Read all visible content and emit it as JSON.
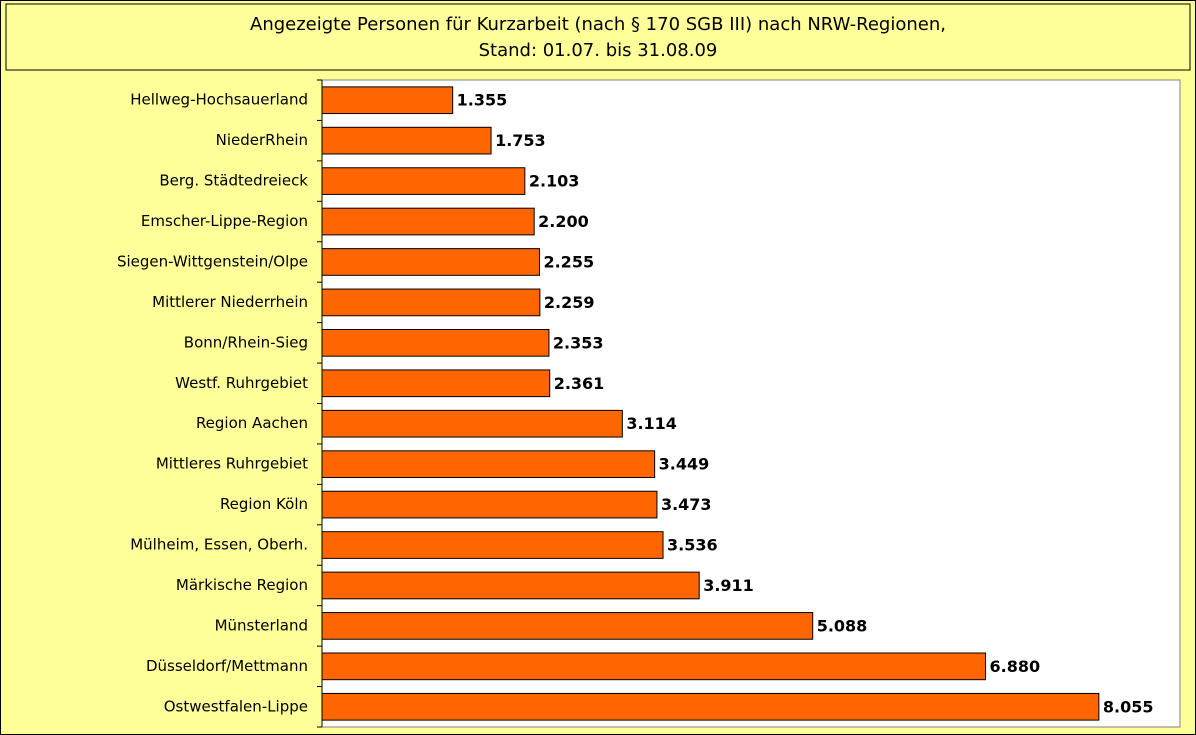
{
  "chart_data": {
    "type": "bar",
    "orientation": "horizontal",
    "title": [
      "Angezeigte Personen für Kurzarbeit (nach § 170 SGB III) nach NRW-Regionen,",
      "Stand: 01.07. bis 31.08.09"
    ],
    "categories": [
      "Hellweg-Hochsauerland",
      "NiederRhein",
      "Berg. Städtedreieck",
      "Emscher-Lippe-Region",
      "Siegen-Wittgenstein/Olpe",
      "Mittlerer Niederrhein",
      "Bonn/Rhein-Sieg",
      "Westf. Ruhrgebiet",
      "Region Aachen",
      "Mittleres Ruhrgebiet",
      "Region Köln",
      "Mülheim, Essen, Oberh.",
      "Märkische Region",
      "Münsterland",
      "Düsseldorf/Mettmann",
      "Ostwestfalen-Lippe"
    ],
    "values": [
      1355,
      1753,
      2103,
      2200,
      2255,
      2259,
      2353,
      2361,
      3114,
      3449,
      3473,
      3536,
      3911,
      5088,
      6880,
      8055
    ],
    "value_labels": [
      "1.355",
      "1.753",
      "2.103",
      "2.200",
      "2.255",
      "2.259",
      "2.353",
      "2.361",
      "3.114",
      "3.449",
      "3.473",
      "3.536",
      "3.911",
      "5.088",
      "6.880",
      "8.055"
    ],
    "color": "#ff6600",
    "xlim": [
      0,
      9000
    ]
  }
}
